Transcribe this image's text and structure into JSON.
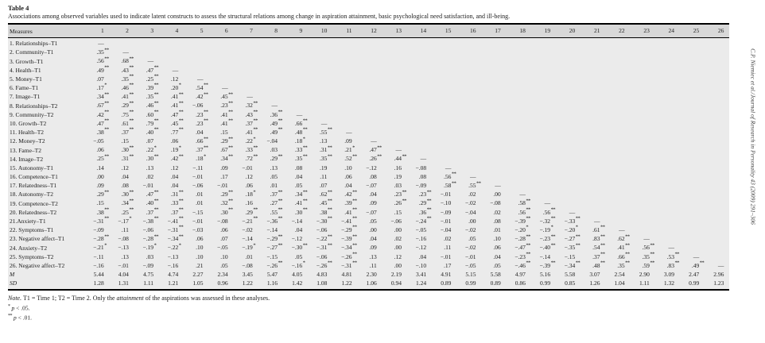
{
  "page": {
    "side_citation": "C.P. Niemiec et al./Journal of Research in Personality 43 (2009) 291–306"
  },
  "table": {
    "label": "Table 4",
    "caption": "Associations among observed variables used to indicate latent constructs to assess the structural relations among change in aspiration attainment, basic psychological need satisfaction, and ill-being.",
    "columns": [
      "Measures",
      "1",
      "2",
      "3",
      "4",
      "5",
      "6",
      "7",
      "8",
      "9",
      "10",
      "11",
      "12",
      "13",
      "14",
      "15",
      "16",
      "17",
      "18",
      "19",
      "20",
      "21",
      "22",
      "23",
      "24",
      "25",
      "26"
    ],
    "rows": [
      {
        "label": "1. Relationships–T1",
        "cells": [
          "—"
        ]
      },
      {
        "label": "2. Community–T1",
        "cells": [
          ".35**",
          "—"
        ]
      },
      {
        "label": "3. Growth–T1",
        "cells": [
          ".56**",
          ".68**",
          "—"
        ]
      },
      {
        "label": "4. Health–T1",
        "cells": [
          ".49**",
          ".43**",
          ".47**",
          "—"
        ]
      },
      {
        "label": "5. Money–T1",
        "cells": [
          ".07",
          ".35**",
          ".25**",
          ".12",
          "—"
        ]
      },
      {
        "label": "6. Fame–T1",
        "cells": [
          ".17*",
          ".46**",
          ".39**",
          ".20*",
          ".54**",
          "—"
        ]
      },
      {
        "label": "7. Image–T1",
        "cells": [
          ".34**",
          ".41**",
          ".35**",
          ".41**",
          ".42**",
          ".45**",
          "—"
        ]
      },
      {
        "label": "8. Relationships–T2",
        "cells": [
          ".67**",
          ".29**",
          ".46**",
          ".41**",
          "−.06",
          ".23**",
          ".32**",
          "—"
        ]
      },
      {
        "label": "9. Community–T2",
        "cells": [
          ".42**",
          ".75**",
          ".60**",
          ".47**",
          ".23**",
          ".41**",
          ".43**",
          ".36**",
          "—"
        ]
      },
      {
        "label": "10. Growth–T2",
        "cells": [
          ".47**",
          ".61**",
          ".79**",
          ".45**",
          ".23**",
          ".41**",
          ".37**",
          ".49**",
          ".66**",
          "—"
        ]
      },
      {
        "label": "11. Health–T2",
        "cells": [
          ".38**",
          ".37**",
          ".40**",
          ".77**",
          ".04",
          ".15",
          ".41**",
          ".49**",
          ".48**",
          ".55**",
          "—"
        ]
      },
      {
        "label": "12. Money–T2",
        "cells": [
          "−.05",
          ".15",
          ".07",
          ".06",
          ".66**",
          ".29**",
          ".22*",
          "−.04",
          ".18*",
          ".13",
          ".09",
          "—"
        ]
      },
      {
        "label": "13. Fame–T2",
        "cells": [
          ".06",
          ".30**",
          ".22*",
          ".19*",
          ".37**",
          ".67**",
          ".33**",
          ".03",
          ".33**",
          ".31**",
          ".21*",
          ".47**",
          "—"
        ]
      },
      {
        "label": "14. Image–T2",
        "cells": [
          ".25**",
          ".31**",
          ".30**",
          ".42**",
          ".18*",
          ".34**",
          ".72**",
          ".29**",
          ".35**",
          ".35**",
          ".52**",
          ".26**",
          ".44**",
          "—"
        ]
      },
      {
        "label": "15. Autonomy–T1",
        "cells": [
          ".14",
          ".12",
          ".13",
          ".12",
          "−.11",
          ".09",
          "−.01",
          ".13",
          ".08",
          ".19",
          ".10",
          "−.12",
          ".16",
          "−.08",
          "—"
        ]
      },
      {
        "label": "16. Competence–T1",
        "cells": [
          ".00",
          ".04",
          ".02",
          ".04",
          "−.01",
          ".17",
          ".12",
          ".05",
          ".04",
          ".11",
          ".06",
          ".08",
          ".19",
          ".08",
          ".56**",
          "—"
        ]
      },
      {
        "label": "17. Relatedness–T1",
        "cells": [
          ".09",
          ".08",
          "−.01",
          ".04",
          "−.06",
          "−.01",
          ".06",
          ".01",
          ".05",
          ".07",
          ".04",
          "−.07",
          ".03",
          "−.09",
          ".58**",
          ".55**",
          "—"
        ]
      },
      {
        "label": "18. Autonomy–T2",
        "cells": [
          ".29**",
          ".30**",
          ".47**",
          ".31**",
          ".01",
          ".29**",
          ".18*",
          ".37**",
          ".34**",
          ".62**",
          ".42**",
          ".04",
          ".23**",
          ".23**",
          "−.01",
          ".02",
          ".00",
          "—"
        ]
      },
      {
        "label": "19. Competence–T2",
        "cells": [
          ".15",
          ".34**",
          ".40**",
          ".33**",
          ".01",
          ".32**",
          ".16",
          ".27**",
          ".41**",
          ".45**",
          ".39**",
          ".09",
          ".26**",
          ".29**",
          "−.10",
          "−.02",
          "−.08",
          ".58**",
          "—"
        ]
      },
      {
        "label": "20. Relatedness–T2",
        "cells": [
          ".38**",
          ".25**",
          ".37**",
          ".37**",
          "−.15",
          ".30**",
          ".29**",
          ".55**",
          ".30**",
          ".38**",
          ".41**",
          "−.07",
          ".15",
          ".36**",
          "−.09",
          "−.04",
          ".02",
          ".56**",
          ".56**",
          "—"
        ]
      },
      {
        "label": "21.Anxiety–T1",
        "cells": [
          "−.31**",
          "−.17*",
          "−.38**",
          "−.41**",
          "−.01",
          "−.08",
          "−.21**",
          "−.36**",
          "−.14",
          "−.30**",
          "−.41**",
          ".05",
          "−.06",
          "−.24**",
          "−.01",
          ".00",
          ".08",
          "−.39**",
          "−.32**",
          "−.33**",
          "—"
        ]
      },
      {
        "label": "22. Symptoms–T1",
        "cells": [
          "−.09",
          ".11",
          "−.06",
          "−.31**",
          "−.03",
          ".06",
          "−.02",
          "−.14",
          ".04",
          "−.06",
          "−.29**",
          ".00",
          ".00",
          "−.05",
          "−.04",
          "−.02",
          ".01",
          "−.20*",
          "−.19*",
          "−.20*",
          ".61**",
          "—"
        ]
      },
      {
        "label": "23. Negative affect–T1",
        "cells": [
          "−.28**",
          "−.08",
          "−.28**",
          "−.34**",
          ".06",
          ".07",
          "−.14",
          "−.29**",
          "−.12",
          "−.22**",
          "−.39**",
          ".04",
          ".02",
          "−.16",
          ".02",
          ".05",
          ".10",
          "−.28**",
          "−.23**",
          "−.27**",
          ".83**",
          ".62**",
          "—"
        ]
      },
      {
        "label": "24. Anxiety–T2",
        "cells": [
          "−.21*",
          "−.13",
          "−.19*",
          "−.22*",
          ".10",
          "−.05",
          "−.19*",
          "−.27**",
          "−.30**",
          "−.31**",
          "−.34**",
          ".09",
          ".00",
          "−.12",
          ".11",
          "−.02",
          ".06",
          "−.47**",
          "−.40**",
          "−.35**",
          ".54**",
          ".41**",
          ".56**",
          "—"
        ]
      },
      {
        "label": "25. Symptoms–T2",
        "cells": [
          "−.11",
          ".13",
          ".03",
          "−.13",
          ".10",
          ".10",
          ".01",
          "−.15",
          ".05",
          "−.06",
          "−.26**",
          ".13",
          ".12",
          ".04",
          "−.01",
          "−.01",
          ".04",
          "−.23**",
          "−.14",
          "−.15",
          ".37**",
          ".66**",
          ".35**",
          ".53**",
          "—"
        ]
      },
      {
        "label": "26. Negative affect–T2",
        "cells": [
          "−.16",
          "−.01",
          "−.09",
          "−.16",
          ".21",
          ".05",
          "−.08",
          "−.26**",
          "−.16*",
          "−.26**",
          "−.31**",
          ".11",
          ".00",
          "−.10",
          ".17",
          "−.05",
          ".05",
          "−.46**",
          "−.39**",
          "−.34**",
          ".48**",
          ".35**",
          ".59**",
          ".83**",
          ".49**",
          "—"
        ]
      },
      {
        "label": "M",
        "em": true,
        "cells": [
          "5.44",
          "4.04",
          "4.75",
          "4.74",
          "2.27",
          "2.34",
          "3.45",
          "5.47",
          "4.05",
          "4.83",
          "4.81",
          "2.30",
          "2.19",
          "3.41",
          "4.91",
          "5.15",
          "5.58",
          "4.97",
          "5.16",
          "5.58",
          "3.07",
          "2.54",
          "2.90",
          "3.09",
          "2.47",
          "2.96"
        ]
      },
      {
        "label": "SD",
        "em": true,
        "cells": [
          "1.28",
          "1.31",
          "1.11",
          "1.21",
          "1.05",
          "0.96",
          "1.22",
          "1.16",
          "1.42",
          "1.08",
          "1.22",
          "1.06",
          "0.94",
          "1.24",
          "0.89",
          "0.99",
          "0.89",
          "0.86",
          "0.99",
          "0.85",
          "1.26",
          "1.04",
          "1.11",
          "1.32",
          "0.99",
          "1.23"
        ]
      }
    ],
    "note": {
      "prefix": "Note.",
      "text_before": " T1 = Time 1; T2 = Time 2. Only the ",
      "emphasis": "attainment",
      "text_after": " of the aspirations was assessed in these analyses."
    },
    "footnotes": [
      {
        "marker": "*",
        "p": "p",
        "rest": " < .05."
      },
      {
        "marker": "**",
        "p": "p",
        "rest": " < .01."
      }
    ]
  }
}
